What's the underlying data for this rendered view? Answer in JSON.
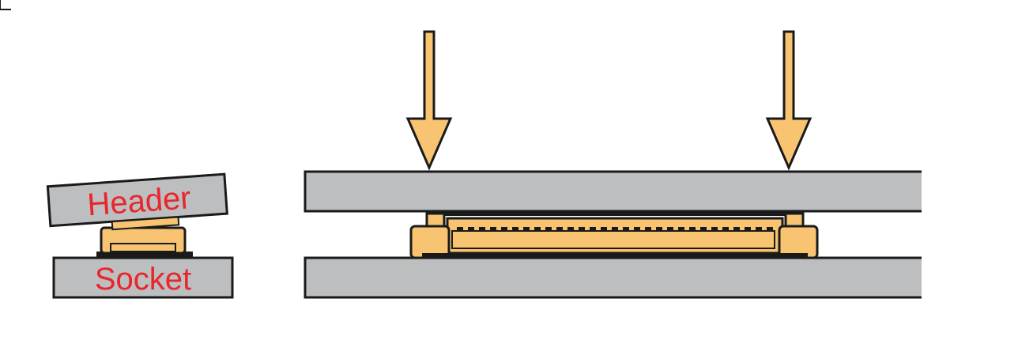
{
  "labels": {
    "header": "Header",
    "socket": "Socket"
  },
  "colors": {
    "board": "#bcbec0",
    "connector": "#f8c471",
    "outline": "#1a1a1a",
    "label": "#e8262c",
    "arrow": "#f8c471"
  },
  "icons": {
    "press_arrow": "down-arrow-icon"
  }
}
